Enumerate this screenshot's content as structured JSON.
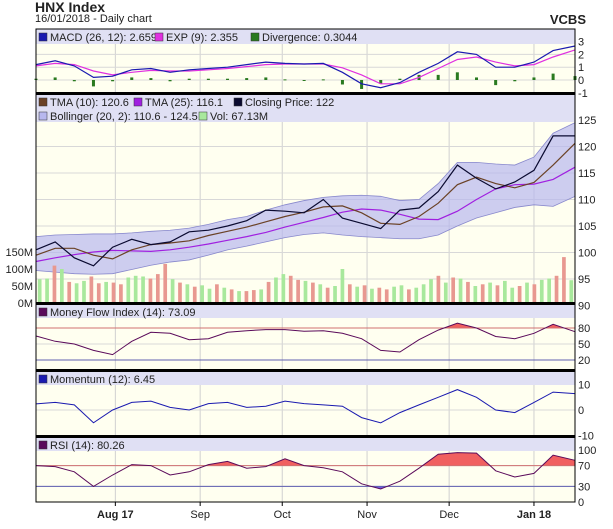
{
  "header": {
    "title": "HNX Index",
    "subtitle": "16/01/2018 - Daily chart",
    "brand": "VCBS"
  },
  "colors": {
    "plot_bg": "#fffff0",
    "legend_bg": "#e0e0f4",
    "macd": "#1a1ab0",
    "exp": "#e030e0",
    "divergence": "#2a7a20",
    "tma10": "#6b4226",
    "tma25": "#a020e0",
    "close": "#0a0a30",
    "bollinger": "#b8b8ee",
    "vol_up": "#a8e89c",
    "vol_down": "#e89890",
    "mfi": "#5a0a5a",
    "momentum": "#1a1ab0",
    "rsi": "#5a0a5a",
    "overbought": "#f06060",
    "oversold": "#7060e0"
  },
  "legends": {
    "macd": [
      "MACD (26, 12): 2.659",
      "EXP (9): 2.355",
      "Divergence: 0.3044"
    ],
    "price_row1": [
      "TMA (10): 120.6",
      "TMA (25): 116.1",
      "Closing Price: 122"
    ],
    "price_row2": [
      "Bollinger (20, 2): 110.6 - 124.5",
      "Vol: 67.13M"
    ],
    "mfi": "Money Flow Index (14): 73.09",
    "momentum": "Momentum (12): 6.45",
    "rsi": "RSI (14): 80.26"
  },
  "chart_data": {
    "type": "line",
    "x_tick_labels": [
      "Aug 17",
      "Sep",
      "Oct",
      "Nov",
      "Dec",
      "Jan 18"
    ],
    "x_tick_dates": [
      "2017-08-01",
      "2017-09-01",
      "2017-10-01",
      "2017-11-01",
      "2017-12-01",
      "2018-01-01"
    ],
    "x_range": [
      "2017-07-03",
      "2018-01-16"
    ],
    "dates": [
      "2017-07-03",
      "2017-07-10",
      "2017-07-17",
      "2017-07-24",
      "2017-07-31",
      "2017-08-07",
      "2017-08-14",
      "2017-08-21",
      "2017-08-28",
      "2017-09-04",
      "2017-09-11",
      "2017-09-18",
      "2017-09-25",
      "2017-10-02",
      "2017-10-09",
      "2017-10-16",
      "2017-10-23",
      "2017-10-30",
      "2017-11-06",
      "2017-11-13",
      "2017-11-20",
      "2017-11-27",
      "2017-12-04",
      "2017-12-11",
      "2017-12-18",
      "2017-12-25",
      "2018-01-01",
      "2018-01-08",
      "2018-01-16"
    ],
    "panels": {
      "macd": {
        "ylim": [
          -1,
          3
        ],
        "ticks": [
          "3",
          "2",
          "1",
          "0",
          "-1"
        ],
        "tick_values": [
          3,
          2,
          1,
          0,
          -1
        ],
        "series": [
          {
            "name": "MACD (26, 12)",
            "values": [
              1.2,
              1.5,
              1.1,
              0.2,
              0.3,
              0.8,
              0.9,
              0.6,
              0.8,
              0.9,
              1.0,
              1.2,
              1.4,
              1.3,
              1.25,
              1.3,
              0.6,
              -0.3,
              -0.6,
              -0.2,
              0.6,
              1.3,
              2.2,
              2.0,
              1.0,
              1.0,
              1.4,
              2.3,
              2.659
            ]
          },
          {
            "name": "EXP (9)",
            "values": [
              1.1,
              1.3,
              1.2,
              0.7,
              0.4,
              0.6,
              0.75,
              0.7,
              0.7,
              0.8,
              0.9,
              1.05,
              1.2,
              1.25,
              1.25,
              1.25,
              0.95,
              0.4,
              -0.3,
              -0.3,
              0.2,
              0.9,
              1.6,
              1.8,
              1.4,
              1.1,
              1.2,
              1.8,
              2.355
            ]
          },
          {
            "name": "Divergence",
            "type": "bar",
            "values": [
              0.1,
              0.2,
              -0.1,
              -0.5,
              -0.1,
              0.2,
              0.15,
              -0.1,
              0.1,
              0.1,
              0.1,
              0.15,
              0.2,
              0.05,
              0.0,
              0.05,
              -0.35,
              -0.7,
              -0.3,
              0.1,
              0.4,
              0.4,
              0.6,
              0.2,
              -0.4,
              -0.1,
              0.2,
              0.5,
              0.3044
            ]
          }
        ]
      },
      "price": {
        "ylim": [
          90,
          125
        ],
        "ticks": [
          "125",
          "120",
          "115",
          "110",
          "105",
          "100",
          "95",
          "90"
        ],
        "tick_values": [
          125,
          120,
          115,
          110,
          105,
          100,
          95,
          90
        ],
        "series": [
          {
            "name": "Closing Price",
            "values": [
              100.5,
              102.0,
              99.0,
              97.5,
              101.0,
              102.5,
              101.5,
              102.0,
              103.9,
              104.2,
              105.0,
              106.0,
              108.0,
              107.8,
              107.5,
              110.0,
              106.5,
              105.5,
              104.5,
              108.0,
              108.4,
              111.5,
              116.5,
              114.0,
              112.0,
              113.3,
              115.5,
              122.0,
              122.0
            ]
          },
          {
            "name": "TMA (10)",
            "values": [
              99.5,
              100.8,
              100.8,
              99.5,
              98.8,
              100.5,
              101.5,
              101.8,
              102.2,
              103.2,
              104.0,
              104.8,
              105.8,
              106.8,
              107.6,
              108.6,
              108.8,
              107.5,
              105.5,
              105.3,
              106.8,
              109.3,
              112.8,
              114.2,
              113.0,
              112.2,
              113.2,
              116.5,
              120.6
            ]
          },
          {
            "name": "TMA (25)",
            "values": [
              98.3,
              99.0,
              99.6,
              100.1,
              100.4,
              100.3,
              100.2,
              100.5,
              101.0,
              101.6,
              102.3,
              103.0,
              103.8,
              104.8,
              105.7,
              106.6,
              107.6,
              108.2,
              108.0,
              107.2,
              106.3,
              106.2,
              107.8,
              110.0,
              112.0,
              112.8,
              112.9,
              113.8,
              116.1
            ]
          },
          {
            "name": "Bollinger upper",
            "values": [
              103.0,
              103.3,
              103.4,
              103.5,
              103.5,
              103.7,
              104.0,
              104.2,
              104.6,
              105.3,
              106.2,
              106.8,
              108.0,
              109.0,
              109.8,
              110.4,
              110.7,
              110.8,
              110.6,
              109.8,
              110.0,
              113.0,
              117.0,
              117.0,
              116.7,
              116.5,
              118.0,
              122.5,
              124.5
            ]
          },
          {
            "name": "Bollinger lower",
            "values": [
              96.6,
              96.3,
              96.0,
              95.9,
              96.0,
              96.8,
              97.6,
              98.2,
              98.6,
              99.5,
              100.5,
              101.2,
              102.0,
              102.8,
              103.4,
              103.7,
              103.3,
              103.0,
              102.8,
              102.6,
              102.6,
              103.3,
              105.0,
              106.5,
              107.5,
              108.5,
              109.0,
              108.7,
              110.6
            ]
          }
        ]
      },
      "volume": {
        "unit": "M",
        "ylim": [
          0,
          150
        ],
        "ticks": [
          "150M",
          "100M",
          "50M",
          "0M"
        ],
        "tick_values": [
          150,
          100,
          50,
          0
        ],
        "values": [
          70,
          72,
          110,
          100,
          62,
          58,
          65,
          78,
          58,
          62,
          60,
          55,
          75,
          80,
          78,
          72,
          85,
          115,
          70,
          60,
          55,
          48,
          52,
          42,
          55,
          45,
          40,
          35,
          35,
          38,
          40,
          62,
          75,
          85,
          80,
          68,
          65,
          60,
          55,
          45,
          50,
          100,
          55,
          48,
          52,
          42,
          45,
          40,
          48,
          52,
          40,
          45,
          55,
          70,
          80,
          60,
          75,
          72,
          62,
          50,
          55,
          60,
          52,
          65,
          45,
          50,
          60,
          55,
          68,
          72,
          80,
          135,
          67
        ],
        "direction": [
          "u",
          "u",
          "d",
          "u",
          "d",
          "u",
          "u",
          "d",
          "d",
          "u",
          "d",
          "d",
          "u",
          "u",
          "u",
          "d",
          "d",
          "d",
          "u",
          "d",
          "u",
          "d",
          "u",
          "u",
          "d",
          "u",
          "d",
          "u",
          "d",
          "d",
          "u",
          "d",
          "u",
          "u",
          "d",
          "d",
          "u",
          "d",
          "u",
          "d",
          "u",
          "u",
          "d",
          "u",
          "d",
          "u",
          "d",
          "d",
          "u",
          "u",
          "d",
          "u",
          "u",
          "u",
          "d",
          "u",
          "d",
          "u",
          "d",
          "u",
          "d",
          "u",
          "d",
          "u",
          "u",
          "d",
          "u",
          "d",
          "u",
          "u",
          "d",
          "d",
          "u"
        ]
      },
      "mfi": {
        "ylim": [
          0,
          100
        ],
        "ticks": [
          "80",
          "50",
          "20"
        ],
        "tick_values": [
          80,
          50,
          20
        ],
        "overbought": 80,
        "oversold": 20,
        "values": [
          65,
          55,
          50,
          38,
          30,
          55,
          72,
          70,
          58,
          60,
          72,
          75,
          77,
          77,
          74,
          75,
          70,
          60,
          38,
          35,
          58,
          76,
          89,
          80,
          64,
          60,
          70,
          87,
          73.09
        ]
      },
      "momentum": {
        "ylim": [
          -10,
          10
        ],
        "ticks": [
          "10",
          "0",
          "-10"
        ],
        "tick_values": [
          10,
          0,
          -10
        ],
        "values": [
          2.4,
          3,
          2,
          -5,
          0,
          3,
          3.5,
          1,
          0,
          2.5,
          3,
          1,
          1.5,
          3.5,
          2.5,
          2,
          1.5,
          -3,
          -5,
          -1,
          2,
          5,
          8,
          5,
          0,
          -1,
          3,
          7,
          6.45
        ]
      },
      "rsi": {
        "ylim": [
          0,
          100
        ],
        "ticks": [
          "100",
          "70",
          "30",
          "0"
        ],
        "tick_values": [
          100,
          70,
          30,
          0
        ],
        "overbought": 70,
        "oversold": 30,
        "values": [
          70,
          68,
          58,
          30,
          52,
          72,
          70,
          52,
          58,
          72,
          78,
          65,
          68,
          83,
          70,
          66,
          58,
          35,
          25,
          40,
          65,
          92,
          95,
          94,
          60,
          48,
          55,
          90,
          80.26
        ]
      }
    }
  }
}
